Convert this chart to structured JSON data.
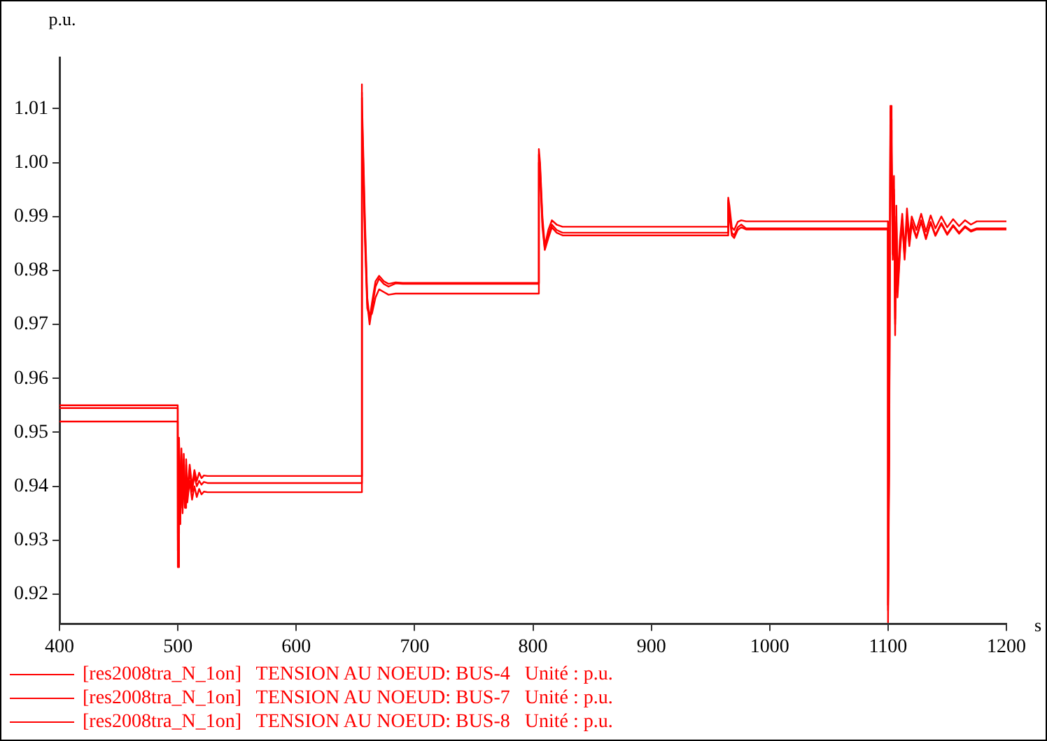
{
  "chart_data": {
    "type": "line",
    "xlabel": "s",
    "ylabel": "p.u.",
    "xlim": [
      400,
      1200
    ],
    "xticks": [
      400,
      500,
      600,
      700,
      800,
      900,
      1000,
      1100,
      1200
    ],
    "ylim": [
      0.9145,
      1.0195
    ],
    "yticks": [
      {
        "value": 0.92,
        "label": "0.92"
      },
      {
        "value": 0.93,
        "label": "0.93"
      },
      {
        "value": 0.94,
        "label": "0.94"
      },
      {
        "value": 0.95,
        "label": "0.95"
      },
      {
        "value": 0.96,
        "label": "0.96"
      },
      {
        "value": 0.97,
        "label": "0.97"
      },
      {
        "value": 0.98,
        "label": "0.98"
      },
      {
        "value": 0.99,
        "label": "0.99"
      },
      {
        "value": 1.0,
        "label": "1.00"
      },
      {
        "value": 1.01,
        "label": "1.01"
      }
    ],
    "grid": false,
    "legend": "bottom left",
    "line_style": "solid",
    "x": [
      400,
      499.9,
      500,
      501,
      502,
      503,
      504,
      505,
      506,
      507,
      508,
      510,
      512,
      514,
      516,
      518,
      520,
      522,
      525,
      654.9,
      655,
      656,
      658,
      660,
      662,
      664,
      667,
      670,
      674,
      678,
      684,
      690,
      804.9,
      805,
      806,
      808,
      810,
      813,
      816,
      820,
      825,
      964.9,
      965,
      966,
      968,
      970,
      973,
      976,
      980,
      1099.9,
      1100,
      1101,
      1102,
      1103,
      1104,
      1105,
      1106,
      1107,
      1108,
      1110,
      1112,
      1114,
      1116,
      1118,
      1120,
      1124,
      1128,
      1132,
      1136,
      1140,
      1145,
      1150,
      1155,
      1160,
      1165,
      1170,
      1175,
      1200
    ],
    "series": [
      {
        "name": "[res2008tra_N_1on]   TENSION AU NOEUD: BUS-4   Unité : p.u.",
        "color": "#ff0000",
        "values": [
          0.955,
          0.955,
          0.925,
          0.949,
          0.933,
          0.947,
          0.936,
          0.946,
          0.938,
          0.945,
          0.939,
          0.944,
          0.94,
          0.943,
          0.941,
          0.9425,
          0.9415,
          0.942,
          0.9419,
          0.9419,
          1.0145,
          1.012,
          0.99,
          0.975,
          0.971,
          0.974,
          0.978,
          0.979,
          0.978,
          0.9775,
          0.9778,
          0.9777,
          0.9777,
          1.0025,
          1.0,
          0.99,
          0.9845,
          0.9875,
          0.9893,
          0.9885,
          0.9881,
          0.9881,
          0.9935,
          0.992,
          0.988,
          0.9875,
          0.989,
          0.9893,
          0.9891,
          0.9891,
          0.9148,
          0.945,
          1.0105,
          1.004,
          0.985,
          0.9975,
          0.968,
          0.992,
          0.978,
          0.9855,
          0.9905,
          0.9835,
          0.9915,
          0.986,
          0.99,
          0.9875,
          0.9905,
          0.9872,
          0.9902,
          0.9878,
          0.99,
          0.988,
          0.9895,
          0.9882,
          0.9893,
          0.9885,
          0.9891,
          0.9891
        ]
      },
      {
        "name": "[res2008tra_N_1on]   TENSION AU NOEUD: BUS-7   Unité : p.u.",
        "color": "#ff0000",
        "values": [
          0.9545,
          0.9545,
          0.928,
          0.948,
          0.934,
          0.946,
          0.936,
          0.945,
          0.937,
          0.944,
          0.938,
          0.943,
          0.939,
          0.942,
          0.94,
          0.941,
          0.9403,
          0.9408,
          0.9406,
          0.9406,
          1.013,
          1.01,
          0.988,
          0.974,
          0.97,
          0.973,
          0.977,
          0.9785,
          0.9775,
          0.977,
          0.9776,
          0.9775,
          0.9775,
          1.0015,
          0.999,
          0.989,
          0.984,
          0.9865,
          0.9885,
          0.9875,
          0.987,
          0.987,
          0.993,
          0.991,
          0.987,
          0.9865,
          0.988,
          0.9885,
          0.9878,
          0.9878,
          0.917,
          0.95,
          1.008,
          1.002,
          0.983,
          0.995,
          0.97,
          0.99,
          0.976,
          0.984,
          0.9895,
          0.9825,
          0.99,
          0.985,
          0.989,
          0.9862,
          0.9893,
          0.986,
          0.989,
          0.9866,
          0.9888,
          0.9868,
          0.9884,
          0.987,
          0.9882,
          0.9874,
          0.9878,
          0.9878
        ]
      },
      {
        "name": "[res2008tra_N_1on]   TENSION AU NOEUD: BUS-8   Unité : p.u.",
        "color": "#ff0000",
        "values": [
          0.952,
          0.952,
          0.93,
          0.946,
          0.933,
          0.944,
          0.935,
          0.943,
          0.936,
          0.942,
          0.937,
          0.941,
          0.9375,
          0.94,
          0.938,
          0.9395,
          0.9385,
          0.939,
          0.9389,
          0.9389,
          1.012,
          1.008,
          0.986,
          0.973,
          0.9715,
          0.972,
          0.975,
          0.9765,
          0.976,
          0.9755,
          0.9757,
          0.9757,
          0.9757,
          1.0,
          0.998,
          0.988,
          0.9838,
          0.986,
          0.988,
          0.987,
          0.9865,
          0.9865,
          0.9925,
          0.99,
          0.9865,
          0.986,
          0.9875,
          0.988,
          0.9876,
          0.9876,
          0.918,
          0.952,
          1.006,
          1.0,
          0.982,
          0.994,
          0.971,
          0.989,
          0.975,
          0.983,
          0.989,
          0.982,
          0.9895,
          0.9845,
          0.9885,
          0.986,
          0.989,
          0.9858,
          0.9888,
          0.9864,
          0.9886,
          0.9866,
          0.9882,
          0.9868,
          0.988,
          0.9872,
          0.9876,
          0.9876
        ]
      }
    ]
  }
}
